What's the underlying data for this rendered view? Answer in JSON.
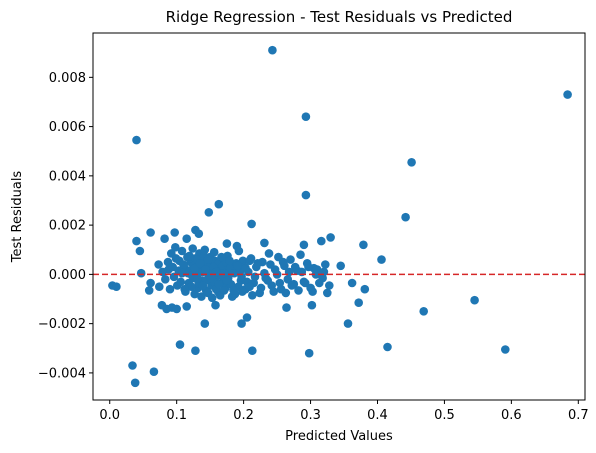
{
  "chart_data": {
    "type": "scatter",
    "title": "Ridge Regression - Test Residuals vs Predicted",
    "xlabel": "Predicted Values",
    "ylabel": "Test Residuals",
    "xlim": [
      -0.025,
      0.71
    ],
    "ylim": [
      -0.0051,
      0.0098
    ],
    "x_ticks": [
      0.0,
      0.1,
      0.2,
      0.3,
      0.4,
      0.5,
      0.6,
      0.7
    ],
    "x_tick_labels": [
      "0.0",
      "0.1",
      "0.2",
      "0.3",
      "0.4",
      "0.5",
      "0.6",
      "0.7"
    ],
    "y_ticks": [
      -0.004,
      -0.002,
      0.0,
      0.002,
      0.004,
      0.006,
      0.008
    ],
    "y_tick_labels": [
      "−0.004",
      "−0.002",
      "0.000",
      "0.002",
      "0.004",
      "0.006",
      "0.008"
    ],
    "grid": false,
    "reference_line": {
      "y": 0.0,
      "style": "dashed",
      "color": "#d62728"
    },
    "point_color": "#1f77b4",
    "points": [
      [
        0.243,
        0.0091
      ],
      [
        0.684,
        0.0073
      ],
      [
        0.293,
        0.0064
      ],
      [
        0.04,
        0.00545
      ],
      [
        0.451,
        0.00455
      ],
      [
        0.293,
        0.00322
      ],
      [
        0.442,
        0.00232
      ],
      [
        0.163,
        0.00285
      ],
      [
        0.148,
        0.00252
      ],
      [
        0.212,
        0.00205
      ],
      [
        0.061,
        0.0017
      ],
      [
        0.097,
        0.0017
      ],
      [
        0.128,
        0.0018
      ],
      [
        0.133,
        0.00165
      ],
      [
        0.04,
        0.00135
      ],
      [
        0.045,
        0.00095
      ],
      [
        0.082,
        0.00145
      ],
      [
        0.115,
        0.00145
      ],
      [
        0.175,
        0.00125
      ],
      [
        0.19,
        0.00115
      ],
      [
        0.231,
        0.00128
      ],
      [
        0.29,
        0.0012
      ],
      [
        0.316,
        0.00135
      ],
      [
        0.33,
        0.0015
      ],
      [
        0.379,
        0.0012
      ],
      [
        0.406,
        0.0006
      ],
      [
        0.345,
        0.00035
      ],
      [
        0.362,
        -0.00035
      ],
      [
        0.381,
        -0.0006
      ],
      [
        0.372,
        -0.00115
      ],
      [
        0.356,
        -0.002
      ],
      [
        0.004,
        -0.00045
      ],
      [
        0.01,
        -0.0005
      ],
      [
        0.034,
        -0.0037
      ],
      [
        0.038,
        -0.0044
      ],
      [
        0.066,
        -0.00395
      ],
      [
        0.105,
        -0.00285
      ],
      [
        0.128,
        -0.0031
      ],
      [
        0.213,
        -0.0031
      ],
      [
        0.298,
        -0.0032
      ],
      [
        0.415,
        -0.00295
      ],
      [
        0.469,
        -0.0015
      ],
      [
        0.545,
        -0.00105
      ],
      [
        0.591,
        -0.00305
      ],
      [
        0.142,
        -0.002
      ],
      [
        0.197,
        -0.002
      ],
      [
        0.205,
        -0.00175
      ],
      [
        0.264,
        -0.00135
      ],
      [
        0.302,
        -0.00125
      ],
      [
        0.325,
        -0.00075
      ],
      [
        0.059,
        -0.00065
      ],
      [
        0.078,
        -0.00125
      ],
      [
        0.085,
        -0.0014
      ],
      [
        0.093,
        -0.00135
      ],
      [
        0.1,
        -0.0014
      ],
      [
        0.115,
        -0.0013
      ],
      [
        0.158,
        -0.00125
      ],
      [
        0.047,
        5e-05
      ],
      [
        0.061,
        -0.00035
      ],
      [
        0.073,
        0.0004
      ],
      [
        0.088,
        0.0002
      ],
      [
        0.092,
        0.00085
      ],
      [
        0.098,
        0.0011
      ],
      [
        0.104,
        0.00055
      ],
      [
        0.108,
        0.00095
      ],
      [
        0.112,
        0.00025
      ],
      [
        0.116,
        0.0007
      ],
      [
        0.118,
        -0.00035
      ],
      [
        0.121,
        0.0005
      ],
      [
        0.124,
        0.00105
      ],
      [
        0.126,
        -0.00015
      ],
      [
        0.128,
        0.00065
      ],
      [
        0.13,
        0.0003
      ],
      [
        0.132,
        -0.00055
      ],
      [
        0.134,
        0.00085
      ],
      [
        0.136,
        0.00015
      ],
      [
        0.138,
        -0.00025
      ],
      [
        0.14,
        0.00055
      ],
      [
        0.142,
        0.001
      ],
      [
        0.144,
        -0.00065
      ],
      [
        0.146,
        0.00035
      ],
      [
        0.148,
        -0.0001
      ],
      [
        0.15,
        0.0007
      ],
      [
        0.152,
        -0.00045
      ],
      [
        0.154,
        0.00025
      ],
      [
        0.156,
        0.0009
      ],
      [
        0.158,
        -0.0002
      ],
      [
        0.16,
        0.00045
      ],
      [
        0.162,
        -0.0007
      ],
      [
        0.164,
        0.00015
      ],
      [
        0.166,
        0.0006
      ],
      [
        0.168,
        -0.00035
      ],
      [
        0.17,
        0.0003
      ],
      [
        0.173,
        -0.00055
      ],
      [
        0.176,
        0.00075
      ],
      [
        0.178,
        5e-05
      ],
      [
        0.181,
        -0.0004
      ],
      [
        0.184,
        0.0004
      ],
      [
        0.187,
        -0.0008
      ],
      [
        0.19,
        0.0002
      ],
      [
        0.193,
        0.00095
      ],
      [
        0.196,
        -0.00025
      ],
      [
        0.199,
        0.00055
      ],
      [
        0.203,
        -0.0006
      ],
      [
        0.207,
        0.0001
      ],
      [
        0.211,
        0.00065
      ],
      [
        0.215,
        -0.00035
      ],
      [
        0.219,
        0.0003
      ],
      [
        0.224,
        -0.00075
      ],
      [
        0.228,
        0.0005
      ],
      [
        0.233,
        -0.00015
      ],
      [
        0.238,
        0.00085
      ],
      [
        0.242,
        -0.00045
      ],
      [
        0.247,
        0.0002
      ],
      [
        0.252,
        0.0007
      ],
      [
        0.256,
        -0.0006
      ],
      [
        0.261,
        0.00035
      ],
      [
        0.266,
        -0.0002
      ],
      [
        0.27,
        0.0006
      ],
      [
        0.275,
        -0.0004
      ],
      [
        0.28,
        0.00015
      ],
      [
        0.285,
        0.0008
      ],
      [
        0.29,
        -0.0003
      ],
      [
        0.295,
        0.00045
      ],
      [
        0.3,
        -0.00055
      ],
      [
        0.305,
        0.00025
      ],
      [
        0.31,
        0.0002
      ],
      [
        0.318,
        -0.00015
      ],
      [
        0.322,
        0.0004
      ],
      [
        0.328,
        -0.00045
      ],
      [
        0.074,
        -0.0005
      ],
      [
        0.079,
        0.0001
      ],
      [
        0.083,
        -0.0002
      ],
      [
        0.087,
        0.0005
      ],
      [
        0.09,
        -0.0006
      ],
      [
        0.094,
        0.0003
      ],
      [
        0.096,
        -0.0001
      ],
      [
        0.099,
        0.00065
      ],
      [
        0.101,
        -0.00045
      ],
      [
        0.103,
        0.00015
      ],
      [
        0.106,
        -0.0003
      ],
      [
        0.11,
        0.0004
      ],
      [
        0.113,
        -0.0007
      ],
      [
        0.117,
        5e-05
      ],
      [
        0.119,
        0.00075
      ],
      [
        0.122,
        -0.0005
      ],
      [
        0.125,
        0.00035
      ],
      [
        0.127,
        -0.0008
      ],
      [
        0.129,
        0.0
      ],
      [
        0.131,
        0.0006
      ],
      [
        0.133,
        -0.00035
      ],
      [
        0.135,
        0.0004
      ],
      [
        0.137,
        -0.0009
      ],
      [
        0.139,
        0.0001
      ],
      [
        0.141,
        0.00075
      ],
      [
        0.143,
        -0.00025
      ],
      [
        0.145,
        0.0005
      ],
      [
        0.147,
        -0.00075
      ],
      [
        0.149,
        0.0
      ],
      [
        0.151,
        0.0004
      ],
      [
        0.153,
        -0.00095
      ],
      [
        0.155,
        -0.0003
      ],
      [
        0.157,
        0.00055
      ],
      [
        0.159,
        -0.0006
      ],
      [
        0.161,
        0.0001
      ],
      [
        0.163,
        0.00045
      ],
      [
        0.165,
        -0.00085
      ],
      [
        0.167,
        -5e-05
      ],
      [
        0.169,
        0.00035
      ],
      [
        0.171,
        -0.00065
      ],
      [
        0.174,
        0.0005
      ],
      [
        0.177,
        -0.00015
      ],
      [
        0.18,
        0.00025
      ],
      [
        0.183,
        -0.0009
      ],
      [
        0.186,
        5e-05
      ],
      [
        0.189,
        0.00045
      ],
      [
        0.192,
        -0.0005
      ],
      [
        0.195,
        0.00015
      ],
      [
        0.198,
        -0.0007
      ],
      [
        0.201,
        0.0003
      ],
      [
        0.205,
        -0.0003
      ],
      [
        0.209,
        0.00055
      ],
      [
        0.213,
        -0.00085
      ],
      [
        0.217,
        -0.0001
      ],
      [
        0.221,
        0.00045
      ],
      [
        0.226,
        -0.00055
      ],
      [
        0.231,
        5e-05
      ],
      [
        0.236,
        -0.00025
      ],
      [
        0.24,
        0.0004
      ],
      [
        0.245,
        -0.0007
      ],
      [
        0.25,
        0.0
      ],
      [
        0.254,
        -0.00035
      ],
      [
        0.259,
        0.0005
      ],
      [
        0.263,
        -0.00075
      ],
      [
        0.268,
        0.0001
      ],
      [
        0.272,
        -0.00045
      ],
      [
        0.277,
        0.0003
      ],
      [
        0.282,
        -0.00065
      ],
      [
        0.287,
        0.0001
      ],
      [
        0.292,
        -0.00035
      ],
      [
        0.297,
        0.0003
      ],
      [
        0.303,
        -0.0007
      ],
      [
        0.308,
        0.0
      ],
      [
        0.313,
        -0.00035
      ],
      [
        0.32,
        0.0001
      ],
      [
        0.108,
        5e-05
      ],
      [
        0.112,
        -0.0006
      ],
      [
        0.12,
        0.00015
      ],
      [
        0.123,
        -5e-05
      ],
      [
        0.127,
        0.00025
      ],
      [
        0.131,
        -0.00015
      ],
      [
        0.135,
        0.00045
      ],
      [
        0.139,
        -0.00045
      ],
      [
        0.143,
        0.0002
      ],
      [
        0.147,
        0.0006
      ],
      [
        0.151,
        -0.00015
      ],
      [
        0.155,
        0.0003
      ],
      [
        0.159,
        0.0001
      ],
      [
        0.163,
        -0.0004
      ],
      [
        0.167,
        0.0007
      ],
      [
        0.171,
        5e-05
      ],
      [
        0.175,
        -0.00025
      ],
      [
        0.179,
        0.00055
      ],
      [
        0.185,
        -0.00065
      ],
      [
        0.191,
        0.00035
      ],
      [
        0.197,
        -0.0001
      ],
      [
        0.203,
        0.00025
      ],
      [
        0.209,
        -0.0005
      ]
    ]
  }
}
